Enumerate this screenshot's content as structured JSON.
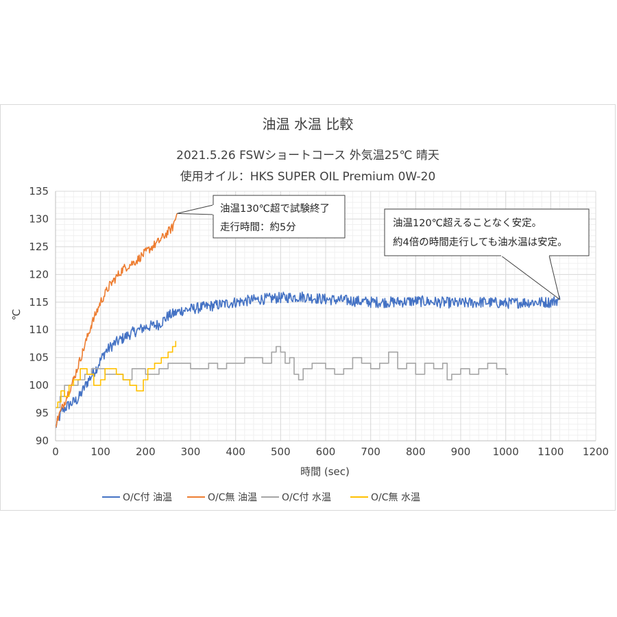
{
  "chart_data": {
    "type": "line",
    "title": "油温 水温 比較",
    "subtitle_lines": [
      "2021.5.26  FSWショートコース 外気温25℃ 晴天",
      "使用オイル：HKS SUPER OIL Premium 0W-20"
    ],
    "xlabel": "時間 (sec)",
    "ylabel": "℃",
    "xlim": [
      0,
      1200
    ],
    "ylim": [
      90,
      135
    ],
    "x_ticks": [
      "0",
      "100",
      "200",
      "300",
      "400",
      "500",
      "600",
      "700",
      "800",
      "900",
      "1000",
      "1100",
      "1200"
    ],
    "y_ticks": [
      "90",
      "95",
      "100",
      "105",
      "110",
      "115",
      "120",
      "125",
      "130",
      "135"
    ],
    "grid": "major and minor",
    "legend_position": "bottom",
    "series": [
      {
        "name": "O/C付 油温",
        "color": "#4472C4",
        "step": false,
        "noise": 1.0,
        "x": [
          0,
          15,
          30,
          50,
          70,
          90,
          110,
          130,
          150,
          170,
          200,
          230,
          250,
          280,
          320,
          360,
          400,
          450,
          500,
          550,
          600,
          650,
          700,
          750,
          800,
          850,
          900,
          950,
          1000,
          1050,
          1100,
          1120
        ],
        "y": [
          92.5,
          95.5,
          96.5,
          97.5,
          100.5,
          103,
          106,
          107.5,
          108.5,
          109.5,
          110.5,
          111,
          112.5,
          113.5,
          114,
          114.5,
          115,
          115.5,
          115.8,
          116,
          115.5,
          115.3,
          115,
          115,
          115.2,
          115,
          114.8,
          115,
          114.8,
          115,
          115,
          115.5
        ]
      },
      {
        "name": "O/C無 油温",
        "color": "#ED7D31",
        "step": false,
        "noise": 0.8,
        "x": [
          0,
          20,
          40,
          60,
          80,
          100,
          120,
          150,
          180,
          200,
          230,
          260,
          270
        ],
        "y": [
          93,
          97,
          101,
          106,
          111,
          115,
          118,
          121,
          122.5,
          124,
          126,
          128.5,
          131
        ]
      },
      {
        "name": "O/C付 水温",
        "color": "#A5A5A5",
        "step": true,
        "noise": 0,
        "x": [
          0,
          10,
          20,
          35,
          50,
          65,
          80,
          95,
          110,
          130,
          150,
          170,
          185,
          200,
          215,
          230,
          250,
          270,
          300,
          320,
          340,
          360,
          380,
          400,
          420,
          440,
          460,
          480,
          490,
          500,
          510,
          520,
          530,
          540,
          550,
          560,
          570,
          580,
          600,
          620,
          640,
          660,
          680,
          700,
          720,
          740,
          760,
          780,
          800,
          820,
          840,
          860,
          870,
          880,
          900,
          920,
          940,
          960,
          980,
          1000,
          1005
        ],
        "y": [
          96,
          98,
          100,
          100,
          101,
          102,
          103,
          103,
          102,
          102,
          101,
          103,
          103,
          102,
          102,
          103,
          104,
          104,
          103,
          103,
          104,
          103,
          104,
          104,
          105,
          105,
          104,
          106,
          107,
          106,
          104,
          105,
          102,
          101,
          103,
          103,
          104,
          104,
          103,
          102,
          103,
          105,
          104,
          103,
          104,
          106,
          103,
          104,
          102,
          104,
          103,
          104,
          101,
          102,
          103,
          102,
          103,
          104,
          103,
          102,
          102
        ]
      },
      {
        "name": "O/C無 水温",
        "color": "#FFC000",
        "step": true,
        "noise": 0,
        "x": [
          0,
          5,
          12,
          20,
          30,
          40,
          55,
          70,
          85,
          100,
          110,
          120,
          135,
          150,
          165,
          180,
          195,
          205,
          220,
          235,
          250,
          260,
          267
        ],
        "y": [
          96,
          97,
          99,
          98,
          100,
          101,
          103,
          102,
          100,
          101,
          103,
          103,
          102,
          101,
          100,
          99,
          101,
          103,
          104,
          105,
          106,
          107,
          108
        ]
      }
    ],
    "annotations": [
      {
        "lines": [
          "油温130℃超で試験終了",
          "走行時間：約5分"
        ],
        "target": [
          270,
          131
        ]
      },
      {
        "lines": [
          "油温120℃超えることなく安定。",
          "約4倍の時間走行しても油水温は安定。"
        ],
        "target": [
          1120,
          115.5
        ]
      }
    ]
  }
}
